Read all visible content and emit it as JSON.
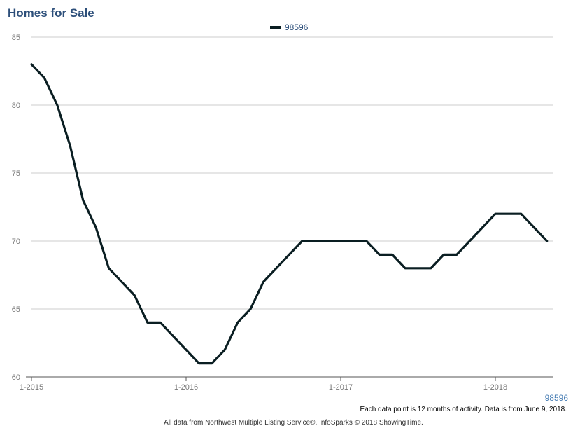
{
  "title": "Homes for Sale",
  "legend_label": "98596",
  "corner_label": "98596",
  "note": "Each data point is 12 months of activity. Data is from June 9, 2018.",
  "credit": "All data from Northwest Multiple Listing Service®. InfoSparks © 2018 ShowingTime.",
  "colors": {
    "line": "#0a1e22",
    "title": "#2d4f7a",
    "grid": "#cccccc"
  },
  "chart_data": {
    "type": "line",
    "title": "Homes for Sale",
    "xlabel": "",
    "ylabel": "",
    "ylim": [
      60,
      85
    ],
    "yticks": [
      60,
      65,
      70,
      75,
      80,
      85
    ],
    "xticks": [
      "1-2015",
      "1-2016",
      "1-2017",
      "1-2018"
    ],
    "grid": true,
    "legend": "top-center",
    "series": [
      {
        "name": "98596",
        "x": [
          "1-2015",
          "2-2015",
          "3-2015",
          "4-2015",
          "5-2015",
          "6-2015",
          "7-2015",
          "8-2015",
          "9-2015",
          "10-2015",
          "11-2015",
          "12-2015",
          "1-2016",
          "2-2016",
          "3-2016",
          "4-2016",
          "5-2016",
          "6-2016",
          "7-2016",
          "8-2016",
          "9-2016",
          "10-2016",
          "11-2016",
          "12-2016",
          "1-2017",
          "2-2017",
          "3-2017",
          "4-2017",
          "5-2017",
          "6-2017",
          "7-2017",
          "8-2017",
          "9-2017",
          "10-2017",
          "11-2017",
          "12-2017",
          "1-2018",
          "2-2018",
          "3-2018",
          "4-2018",
          "5-2018"
        ],
        "values": [
          83,
          82,
          80,
          77,
          73,
          71,
          68,
          67,
          66,
          64,
          64,
          63,
          62,
          61,
          61,
          62,
          64,
          65,
          67,
          68,
          69,
          70,
          70,
          70,
          70,
          70,
          70,
          69,
          69,
          68,
          68,
          68,
          69,
          69,
          70,
          71,
          72,
          72,
          72,
          71,
          70
        ]
      }
    ]
  }
}
